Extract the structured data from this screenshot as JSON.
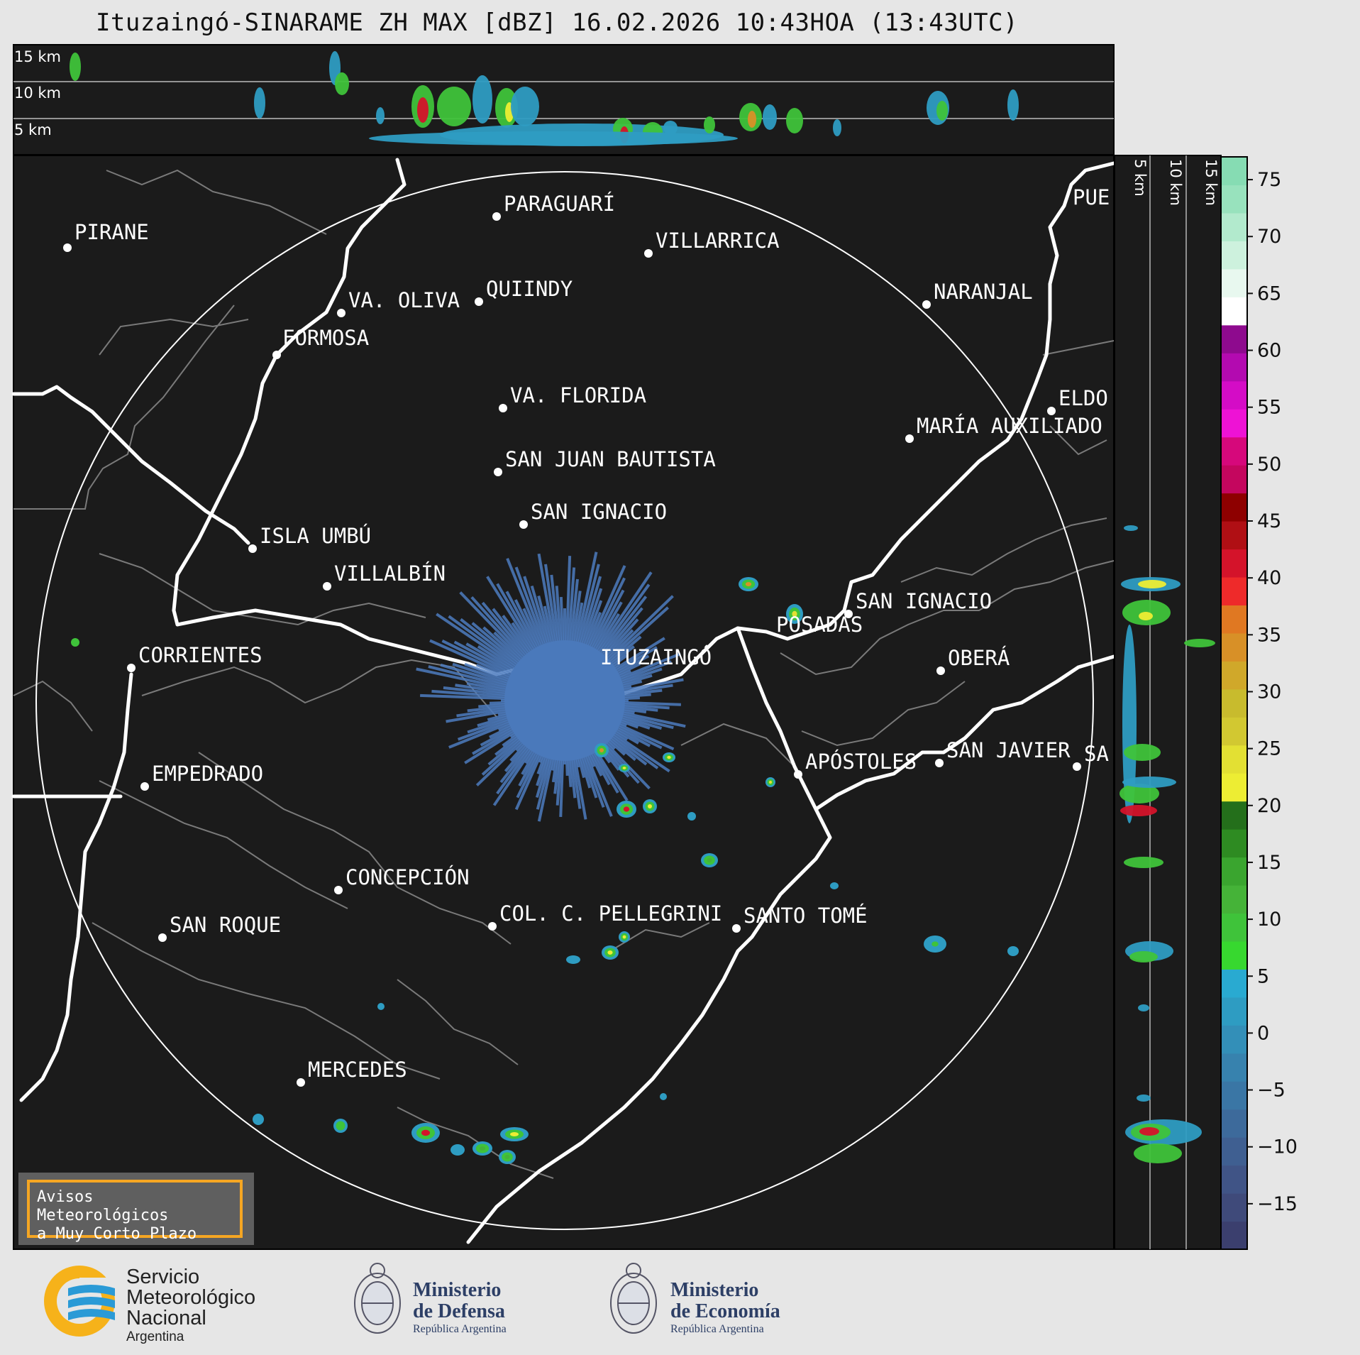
{
  "title": "Ituzaingó-SINARAME ZH MAX [dBZ] 16.02.2026 10:43HOA (13:43UTC)",
  "altitude_labels_top": [
    "15 km",
    "10 km",
    "5 km"
  ],
  "altitude_labels_side": [
    "5 km",
    "10 km",
    "15 km"
  ],
  "colorbar": {
    "ticks": [
      "75",
      "70",
      "65",
      "60",
      "55",
      "50",
      "45",
      "40",
      "35",
      "30",
      "25",
      "20",
      "15",
      "10",
      "5",
      "0",
      "−5",
      "−10",
      "−15"
    ],
    "colors": [
      "#3b3f6e",
      "#3f4a7a",
      "#405486",
      "#3f5f91",
      "#3d6a9b",
      "#3a76a5",
      "#3782ae",
      "#338fb8",
      "#2e9cc2",
      "#29aad1",
      "#37d82f",
      "#3fc33a",
      "#45b338",
      "#3aa52f",
      "#2e8b22",
      "#246f1b",
      "#eded33",
      "#e3e033",
      "#d2c831",
      "#c8bb2d",
      "#d0a82a",
      "#d89027",
      "#e07822",
      "#ee2a2a",
      "#d4132a",
      "#b00f14",
      "#8e0000",
      "#c4065e",
      "#d6087b",
      "#ee12d5",
      "#d40cc6",
      "#b30ab0",
      "#8e0a8e",
      "#ffffff",
      "#e8f8ef",
      "#cdf1dd",
      "#b2eacd",
      "#98e2bd",
      "#86dcb3"
    ],
    "colors_note": "",
    "value_range": [
      -19,
      77
    ]
  },
  "cities": [
    {
      "name": "PIRANE"
    },
    {
      "name": "PARAGUARÍ"
    },
    {
      "name": "VILLARRICA"
    },
    {
      "name": "VA. OLIVA"
    },
    {
      "name": "QUIINDY"
    },
    {
      "name": "FORMOSA"
    },
    {
      "name": "NARANJAL"
    },
    {
      "name": "PUE"
    },
    {
      "name": "VA. FLORIDA"
    },
    {
      "name": "ELDO"
    },
    {
      "name": "MARÍA AUXILIADO"
    },
    {
      "name": "SAN JUAN BAUTISTA"
    },
    {
      "name": "SAN IGNACIO"
    },
    {
      "name": "ISLA UMBÚ"
    },
    {
      "name": "VILLALBÍN"
    },
    {
      "name": "SAN IGNACIO"
    },
    {
      "name": "POSADAS"
    },
    {
      "name": "CORRIENTES"
    },
    {
      "name": "ITUZAINGÓ"
    },
    {
      "name": "OBERÁ"
    },
    {
      "name": "EMPEDRADO"
    },
    {
      "name": "APÓSTOLES"
    },
    {
      "name": "SAN JAVIER"
    },
    {
      "name": "SA"
    },
    {
      "name": "CONCEPCIÓN"
    },
    {
      "name": "COL. C. PELLEGRINI"
    },
    {
      "name": "SANTO TOMÉ"
    },
    {
      "name": "SAN ROQUE"
    },
    {
      "name": "MERCEDES"
    }
  ],
  "avisos": {
    "line1": "Avisos Meteorológicos",
    "line2": "a Muy Corto Plazo"
  },
  "logos": {
    "smn": {
      "line1": "Servicio",
      "line2": "Meteorológico",
      "line3": "Nacional",
      "line4": "Argentina"
    },
    "defensa": {
      "line1": "Ministerio",
      "line2": "de Defensa",
      "line3": "República Argentina"
    },
    "economia": {
      "line1": "Ministerio",
      "line2": "de Economía",
      "line3": "República Argentina"
    }
  }
}
